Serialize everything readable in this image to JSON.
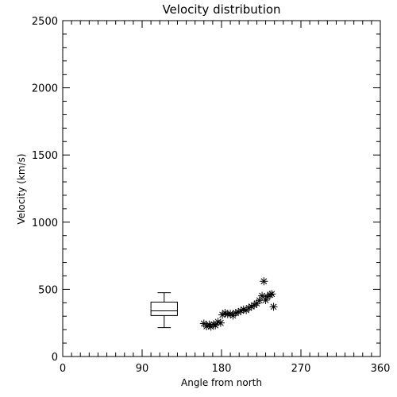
{
  "chart_data": {
    "type": "scatter",
    "title": "Velocity distribution",
    "xlabel": "Angle from north",
    "ylabel": "Velocity (km/s)",
    "xlim": [
      0,
      360
    ],
    "ylim": [
      0,
      2500
    ],
    "xticks": [
      0,
      90,
      180,
      270,
      360
    ],
    "yticks": [
      0,
      500,
      1000,
      1500,
      2000,
      2500
    ],
    "grid": false,
    "marker": "asterisk",
    "color": "#000000",
    "points": [
      {
        "x": 160,
        "y": 245
      },
      {
        "x": 163,
        "y": 225
      },
      {
        "x": 166,
        "y": 238
      },
      {
        "x": 168,
        "y": 222
      },
      {
        "x": 171,
        "y": 240
      },
      {
        "x": 173,
        "y": 232
      },
      {
        "x": 176,
        "y": 258
      },
      {
        "x": 179,
        "y": 250
      },
      {
        "x": 181,
        "y": 310
      },
      {
        "x": 184,
        "y": 325
      },
      {
        "x": 187,
        "y": 315
      },
      {
        "x": 190,
        "y": 318
      },
      {
        "x": 193,
        "y": 305
      },
      {
        "x": 196,
        "y": 325
      },
      {
        "x": 199,
        "y": 330
      },
      {
        "x": 202,
        "y": 340
      },
      {
        "x": 205,
        "y": 350
      },
      {
        "x": 208,
        "y": 345
      },
      {
        "x": 211,
        "y": 362
      },
      {
        "x": 214,
        "y": 372
      },
      {
        "x": 217,
        "y": 382
      },
      {
        "x": 220,
        "y": 395
      },
      {
        "x": 223,
        "y": 418
      },
      {
        "x": 226,
        "y": 452
      },
      {
        "x": 228,
        "y": 560
      },
      {
        "x": 230,
        "y": 420
      },
      {
        "x": 232,
        "y": 445
      },
      {
        "x": 235,
        "y": 460
      },
      {
        "x": 237,
        "y": 465
      },
      {
        "x": 239,
        "y": 370
      }
    ],
    "boxplot": {
      "x_center": 115,
      "x_range": [
        100,
        130
      ],
      "whisker_low": 215,
      "q1": 305,
      "median": 340,
      "q3": 405,
      "whisker_high": 475
    }
  }
}
